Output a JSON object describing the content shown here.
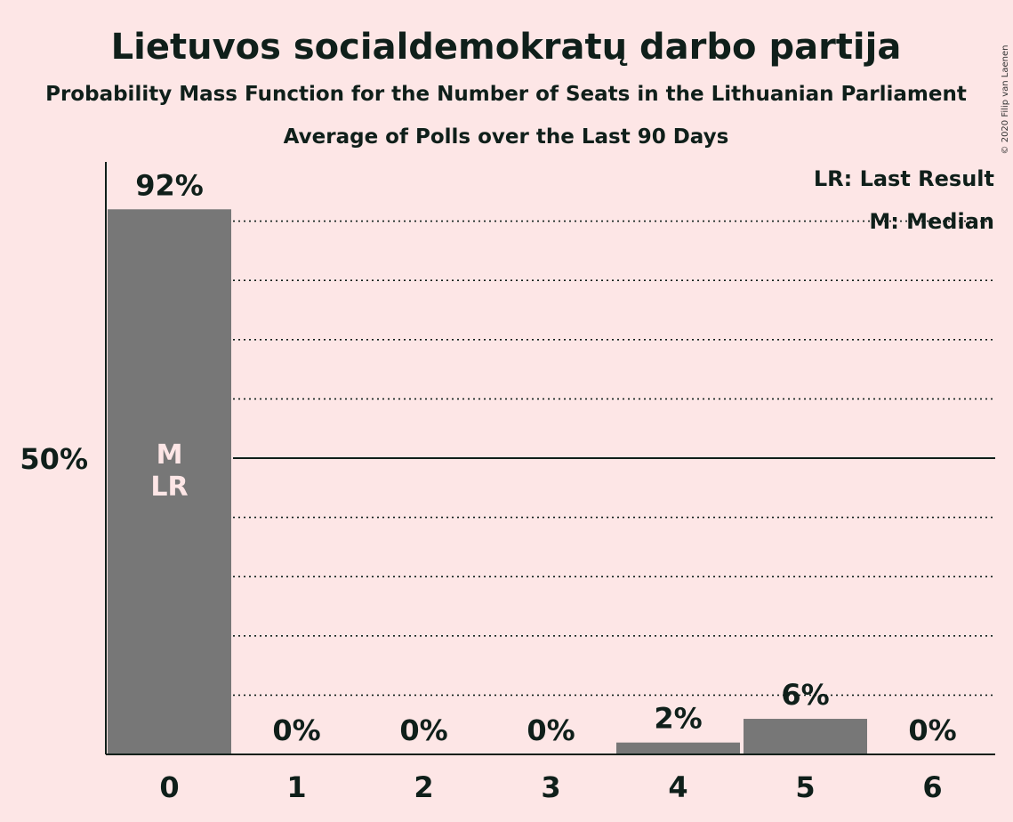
{
  "chart_data": {
    "type": "bar",
    "title": "Lietuvos socialdemokratų darbo partija",
    "subtitle_1": "Probability Mass Function for the Number of Seats in the Lithuanian Parliament",
    "subtitle_2": "Average of Polls over the Last 90 Days",
    "categories": [
      "0",
      "1",
      "2",
      "3",
      "4",
      "5",
      "6"
    ],
    "values": [
      92,
      0,
      0,
      0,
      2,
      6,
      0
    ],
    "value_labels": [
      "92%",
      "0%",
      "0%",
      "0%",
      "2%",
      "6%",
      "0%"
    ],
    "bar_markers": [
      [
        "M",
        "LR"
      ],
      [],
      [],
      [],
      [],
      [],
      []
    ],
    "ylim": [
      0,
      100
    ],
    "ytick_label": "50%",
    "ytick_value": 50,
    "dotted_gridlines": [
      10,
      20,
      30,
      40,
      60,
      70,
      80,
      90
    ],
    "legend": [
      "LR: Last Result",
      "M: Median"
    ],
    "legend_position": "top-right",
    "copyright": "© 2020 Filip van Laenen",
    "colors": {
      "background": "#fde6e6",
      "bar": "#777777",
      "text": "#0f1f1a",
      "inbar_text": "#fde6e6"
    }
  }
}
